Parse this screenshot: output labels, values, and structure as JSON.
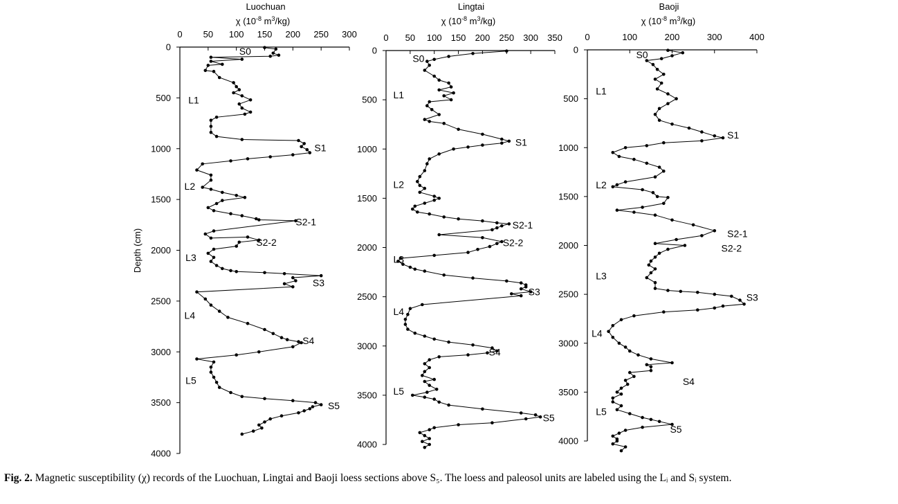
{
  "figure": {
    "y_axis_label": "Depth (cm)",
    "panels": [
      {
        "id": "luochuan",
        "title": "Luochuan",
        "xunit_prefix": "χ (10",
        "xunit_exp1": "-8",
        "xunit_mid": " m",
        "xunit_exp2": "3",
        "xunit_suffix": "/kg)"
      },
      {
        "id": "lingtai",
        "title": "Lingtai",
        "xunit_prefix": "χ (10",
        "xunit_exp1": "-8",
        "xunit_mid": " m",
        "xunit_exp2": "3",
        "xunit_suffix": "/kg)"
      },
      {
        "id": "baoji",
        "title": "Baoji",
        "xunit_prefix": "χ (10",
        "xunit_exp1": "-8",
        "xunit_mid": " m",
        "xunit_exp2": "3",
        "xunit_suffix": "/kg)"
      }
    ]
  },
  "chart_data": [
    {
      "type": "line",
      "title": "Luochuan",
      "xlabel": "χ (10-8 m3/kg)",
      "ylabel": "Depth (cm)",
      "xlim": [
        0,
        300
      ],
      "ylim": [
        0,
        4000
      ],
      "y_inverted": true,
      "xticks": [
        0,
        50,
        100,
        150,
        200,
        250,
        300
      ],
      "yticks": [
        0,
        500,
        1000,
        1500,
        2000,
        2500,
        3000,
        3500,
        4000
      ],
      "x": [
        150,
        170,
        165,
        175,
        160,
        55,
        110,
        55,
        75,
        50,
        45,
        60,
        70,
        95,
        100,
        105,
        95,
        110,
        125,
        105,
        110,
        125,
        115,
        65,
        55,
        55,
        55,
        65,
        110,
        210,
        220,
        215,
        225,
        230,
        200,
        160,
        120,
        90,
        40,
        30,
        55,
        55,
        40,
        55,
        75,
        100,
        115,
        75,
        65,
        50,
        60,
        90,
        110,
        135,
        140,
        205,
        60,
        45,
        55,
        120,
        140,
        105,
        100,
        60,
        50,
        60,
        55,
        65,
        75,
        90,
        100,
        150,
        185,
        250,
        200,
        205,
        185,
        200,
        30,
        45,
        55,
        70,
        85,
        120,
        150,
        165,
        180,
        190,
        210,
        215,
        200,
        140,
        100,
        30,
        60,
        55,
        55,
        60,
        65,
        70,
        90,
        110,
        150,
        200,
        240,
        250,
        235,
        230,
        220,
        210,
        180,
        160,
        150,
        140,
        145,
        130,
        110
      ],
      "y": [
        5,
        20,
        60,
        80,
        90,
        100,
        120,
        140,
        170,
        180,
        230,
        240,
        300,
        350,
        390,
        420,
        450,
        480,
        520,
        560,
        600,
        640,
        660,
        690,
        720,
        780,
        840,
        880,
        910,
        920,
        950,
        980,
        1010,
        1040,
        1060,
        1080,
        1100,
        1120,
        1150,
        1210,
        1260,
        1310,
        1380,
        1400,
        1430,
        1460,
        1480,
        1510,
        1540,
        1580,
        1610,
        1640,
        1660,
        1690,
        1700,
        1710,
        1810,
        1840,
        1880,
        1870,
        1900,
        1920,
        1960,
        1990,
        2030,
        2070,
        2110,
        2150,
        2180,
        2200,
        2210,
        2220,
        2230,
        2250,
        2270,
        2300,
        2330,
        2360,
        2410,
        2480,
        2540,
        2600,
        2660,
        2720,
        2780,
        2820,
        2860,
        2880,
        2900,
        2910,
        2950,
        3000,
        3030,
        3070,
        3100,
        3150,
        3200,
        3250,
        3300,
        3350,
        3400,
        3440,
        3460,
        3480,
        3500,
        3520,
        3540,
        3560,
        3580,
        3600,
        3630,
        3660,
        3690,
        3720,
        3750,
        3780,
        3810
      ]
    },
    {
      "type": "line",
      "title": "Lingtai",
      "xlabel": "χ (10-8 m3/kg)",
      "ylabel": "Depth (cm)",
      "xlim": [
        0,
        350
      ],
      "ylim": [
        0,
        4000
      ],
      "y_inverted": true,
      "xticks": [
        0,
        50,
        100,
        150,
        200,
        250,
        300,
        350
      ],
      "yticks": [
        0,
        500,
        1000,
        1500,
        2000,
        2500,
        3000,
        3500,
        4000
      ],
      "x": [
        250,
        180,
        130,
        100,
        85,
        90,
        80,
        100,
        110,
        130,
        135,
        110,
        140,
        120,
        135,
        90,
        85,
        95,
        110,
        80,
        90,
        120,
        150,
        200,
        240,
        255,
        240,
        200,
        170,
        140,
        110,
        90,
        85,
        80,
        70,
        65,
        70,
        80,
        70,
        100,
        110,
        100,
        80,
        60,
        55,
        65,
        90,
        120,
        150,
        200,
        230,
        255,
        240,
        230,
        220,
        110,
        200,
        240,
        230,
        215,
        190,
        170,
        100,
        30,
        25,
        35,
        50,
        60,
        80,
        120,
        180,
        250,
        280,
        290,
        290,
        280,
        300,
        260,
        280,
        75,
        50,
        45,
        40,
        40,
        45,
        60,
        80,
        100,
        130,
        180,
        220,
        230,
        210,
        170,
        110,
        90,
        80,
        90,
        80,
        75,
        100,
        80,
        90,
        105,
        85,
        55,
        80,
        100,
        110,
        130,
        200,
        280,
        310,
        320,
        290,
        220,
        150,
        100,
        90,
        70,
        80,
        90,
        75,
        90,
        80
      ],
      "y": [
        5,
        30,
        60,
        90,
        110,
        150,
        200,
        260,
        300,
        330,
        370,
        400,
        430,
        460,
        500,
        520,
        560,
        600,
        650,
        700,
        720,
        740,
        800,
        850,
        900,
        920,
        940,
        960,
        980,
        1000,
        1050,
        1100,
        1150,
        1220,
        1280,
        1330,
        1370,
        1400,
        1440,
        1480,
        1500,
        1520,
        1550,
        1580,
        1610,
        1640,
        1660,
        1690,
        1710,
        1730,
        1750,
        1760,
        1780,
        1800,
        1820,
        1870,
        1900,
        1940,
        1960,
        1990,
        2020,
        2050,
        2080,
        2110,
        2140,
        2170,
        2200,
        2220,
        2240,
        2280,
        2310,
        2340,
        2360,
        2380,
        2400,
        2420,
        2450,
        2470,
        2490,
        2580,
        2620,
        2680,
        2730,
        2780,
        2830,
        2870,
        2900,
        2930,
        2960,
        2990,
        3020,
        3050,
        3070,
        3090,
        3110,
        3140,
        3180,
        3220,
        3260,
        3300,
        3340,
        3360,
        3400,
        3440,
        3470,
        3500,
        3520,
        3540,
        3570,
        3600,
        3640,
        3680,
        3700,
        3720,
        3740,
        3780,
        3800,
        3830,
        3850,
        3880,
        3910,
        3940,
        3970,
        4000,
        4030
      ]
    },
    {
      "type": "line",
      "title": "Baoji",
      "xlabel": "χ (10-8 m3/kg)",
      "ylabel": "Depth (cm)",
      "xlim": [
        0,
        400
      ],
      "ylim": [
        0,
        4000
      ],
      "y_inverted": true,
      "xticks": [
        0,
        100,
        200,
        300,
        400
      ],
      "yticks": [
        0,
        500,
        1000,
        1500,
        2000,
        2500,
        3000,
        3500,
        4000
      ],
      "x": [
        190,
        225,
        200,
        175,
        140,
        155,
        165,
        180,
        160,
        175,
        165,
        190,
        210,
        190,
        170,
        160,
        170,
        200,
        240,
        270,
        300,
        320,
        270,
        180,
        140,
        90,
        60,
        75,
        110,
        140,
        170,
        180,
        160,
        90,
        70,
        60,
        130,
        155,
        165,
        190,
        180,
        130,
        70,
        110,
        160,
        200,
        250,
        300,
        270,
        210,
        160,
        230,
        190,
        170,
        160,
        150,
        145,
        160,
        150,
        140,
        160,
        160,
        190,
        220,
        260,
        300,
        340,
        360,
        370,
        320,
        300,
        260,
        180,
        110,
        80,
        60,
        50,
        60,
        75,
        90,
        100,
        120,
        150,
        200,
        140,
        150,
        150,
        100,
        110,
        90,
        95,
        80,
        70,
        80,
        60,
        60,
        80,
        70,
        100,
        130,
        150,
        170,
        200,
        130,
        90,
        75,
        60,
        70,
        70,
        60,
        90,
        80
      ],
      "y": [
        5,
        30,
        60,
        90,
        110,
        150,
        200,
        250,
        300,
        340,
        400,
        450,
        500,
        550,
        600,
        660,
        720,
        760,
        800,
        840,
        880,
        900,
        930,
        950,
        980,
        1000,
        1050,
        1090,
        1120,
        1160,
        1200,
        1240,
        1300,
        1350,
        1380,
        1400,
        1430,
        1460,
        1500,
        1510,
        1570,
        1610,
        1640,
        1660,
        1690,
        1740,
        1790,
        1850,
        1900,
        1940,
        1980,
        2000,
        2040,
        2080,
        2120,
        2160,
        2200,
        2240,
        2280,
        2330,
        2380,
        2440,
        2460,
        2470,
        2480,
        2500,
        2520,
        2560,
        2600,
        2620,
        2640,
        2660,
        2680,
        2720,
        2760,
        2820,
        2880,
        2940,
        3000,
        3040,
        3080,
        3120,
        3160,
        3200,
        3220,
        3240,
        3280,
        3300,
        3340,
        3380,
        3420,
        3460,
        3500,
        3520,
        3560,
        3600,
        3640,
        3680,
        3720,
        3760,
        3780,
        3800,
        3830,
        3860,
        3890,
        3920,
        3950,
        3980,
        4000,
        4030,
        4060,
        4100
      ],
      "annotations": {
        "luochuan": [
          [
            "S0",
            105,
            40
          ],
          [
            "L1",
            15,
            520
          ],
          [
            "S1",
            238,
            990
          ],
          [
            "L2",
            8,
            1370
          ],
          [
            "S2-1",
            205,
            1720
          ],
          [
            "S2-2",
            135,
            1920
          ],
          [
            "L3",
            10,
            2070
          ],
          [
            "S3",
            235,
            2320
          ],
          [
            "L4",
            8,
            2640
          ],
          [
            "S4",
            217,
            2890
          ],
          [
            "L5",
            10,
            3280
          ],
          [
            "S5",
            262,
            3530
          ]
        ],
        "lingtai": [
          [
            "S0",
            55,
            80
          ],
          [
            "L1",
            15,
            450
          ],
          [
            "S1",
            268,
            930
          ],
          [
            "L2",
            15,
            1360
          ],
          [
            "S2-1",
            262,
            1770
          ],
          [
            "S2-2",
            242,
            1950
          ],
          [
            "L3",
            15,
            2120
          ],
          [
            "S3",
            295,
            2450
          ],
          [
            "L4",
            15,
            2650
          ],
          [
            "S4",
            213,
            3060
          ],
          [
            "L5",
            15,
            3460
          ],
          [
            "S5",
            325,
            3730
          ]
        ],
        "baoji": [
          [
            "S0",
            115,
            50
          ],
          [
            "L1",
            20,
            420
          ],
          [
            "S1",
            330,
            870
          ],
          [
            "L2",
            20,
            1380
          ],
          [
            "S2-1",
            330,
            1880
          ],
          [
            "S2-2",
            316,
            2030
          ],
          [
            "L3",
            20,
            2310
          ],
          [
            "S3",
            375,
            2530
          ],
          [
            "L4",
            10,
            2900
          ],
          [
            "S4",
            225,
            3390
          ],
          [
            "L5",
            20,
            3700
          ],
          [
            "S5",
            195,
            3880
          ]
        ]
      }
    }
  ],
  "caption": {
    "label": "Fig. 2.",
    "text": " Magnetic susceptibility (χ) records of the Luochuan, Lingtai and Baoji loess sections above S₅. The loess and paleosol units are labeled using the Lᵢ and Sᵢ system."
  }
}
